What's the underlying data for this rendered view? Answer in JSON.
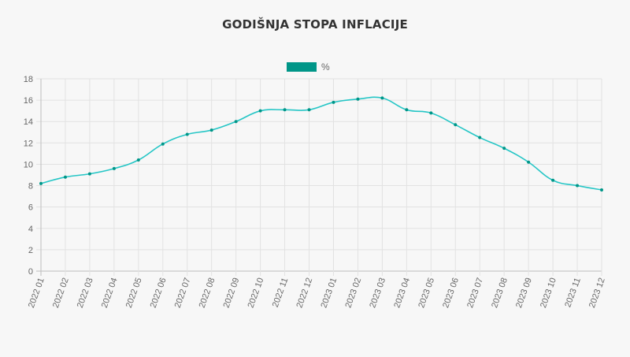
{
  "chart_data": {
    "type": "line",
    "title": "GODIŠNJA STOPA INFLACIJE",
    "xlabel": "",
    "ylabel": "",
    "legend_position": "top",
    "grid": true,
    "ylim": [
      0,
      18
    ],
    "yticks": [
      "0",
      "2",
      "4",
      "6",
      "8",
      "10",
      "12",
      "14",
      "16",
      "18"
    ],
    "categories": [
      "2022 01",
      "2022 02",
      "2022 03",
      "2022 04",
      "2022 05",
      "2022 06",
      "2022 07",
      "2022 08",
      "2022 09",
      "2022 10",
      "2022 11",
      "2022 12",
      "2023 01",
      "2023 02",
      "2023 03",
      "2023 04",
      "2023 05",
      "2023 06",
      "2023 07",
      "2023 08",
      "2023 09",
      "2023 10",
      "2023 11",
      "2023 12"
    ],
    "series": [
      {
        "name": "%",
        "color": "#26c6c6",
        "legend_color": "#009688",
        "values": [
          8.2,
          8.8,
          9.1,
          9.6,
          10.4,
          11.9,
          12.8,
          13.2,
          14.0,
          15.0,
          15.1,
          15.1,
          15.8,
          16.1,
          16.2,
          15.1,
          14.8,
          13.7,
          12.5,
          11.5,
          10.2,
          8.5,
          8.0,
          7.6
        ]
      }
    ]
  }
}
